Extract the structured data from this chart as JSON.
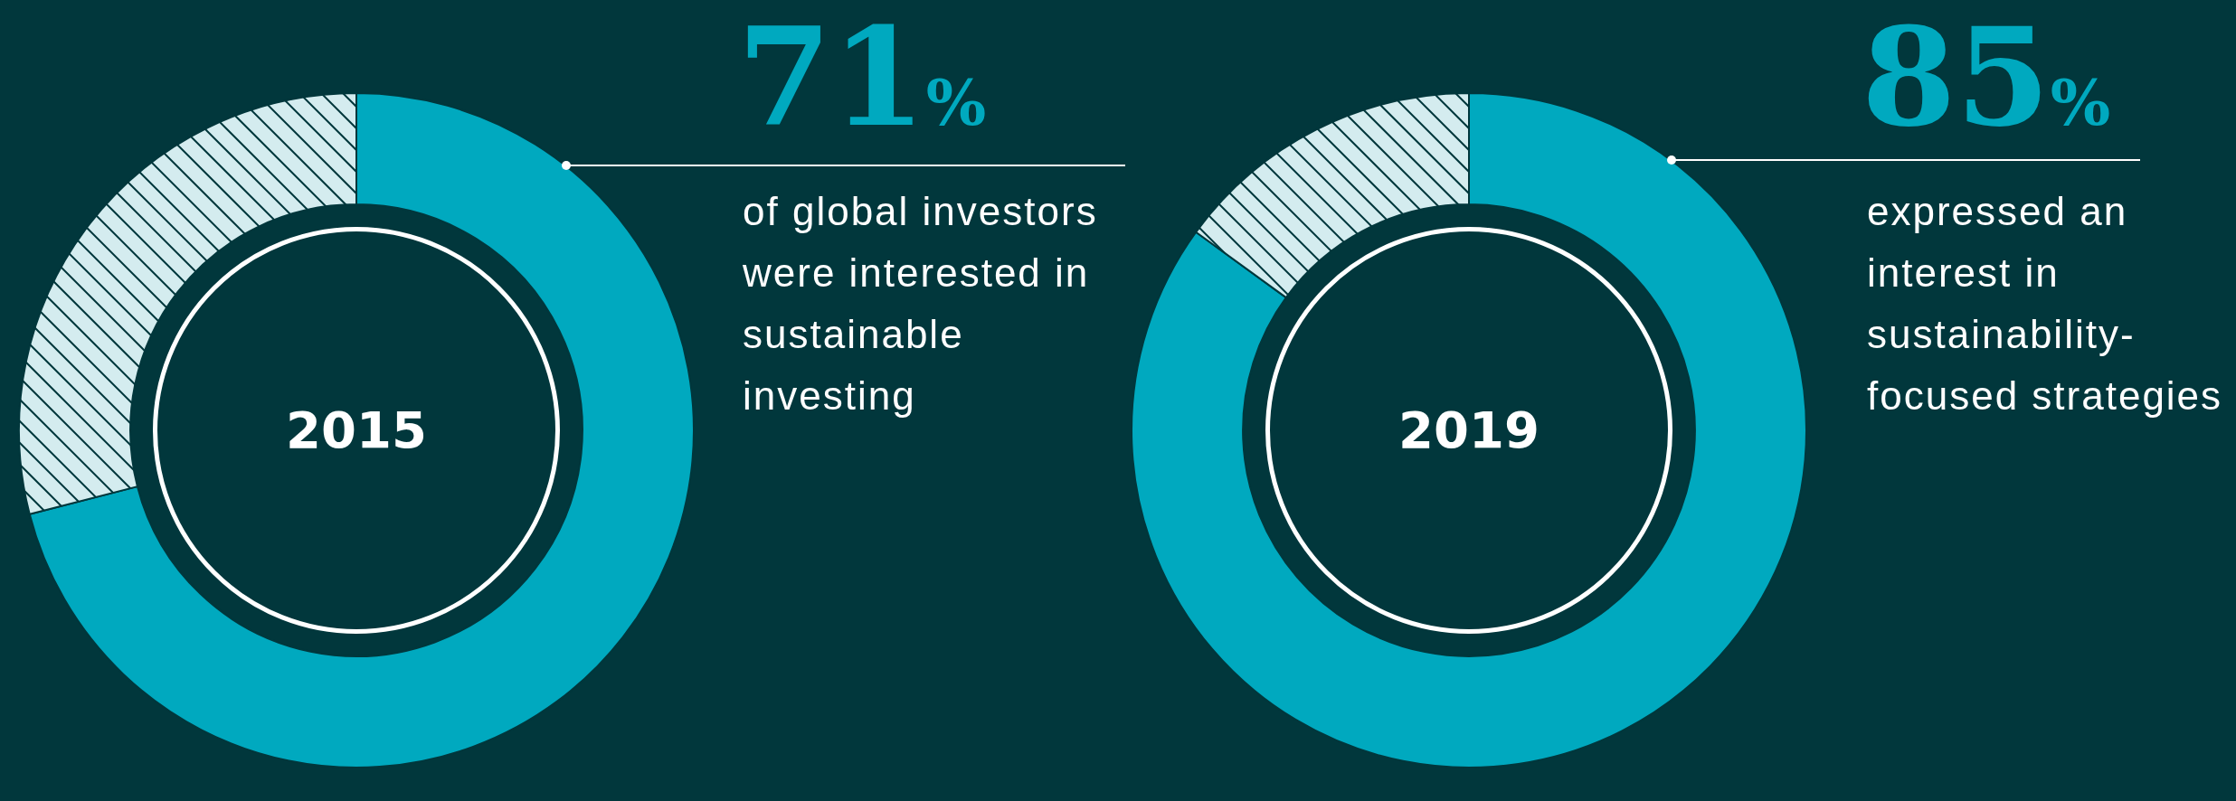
{
  "chart_data": [
    {
      "type": "donut",
      "title": "2015",
      "categories": [
        null,
        null
      ],
      "values": [
        71,
        29
      ],
      "colors": [
        "#00a9bf",
        "#d4ecef"
      ],
      "annotations": [
        "71%",
        "of global investors were interested in sustainable investing"
      ]
    },
    {
      "type": "donut",
      "title": "2019",
      "categories": [
        null,
        null
      ],
      "values": [
        85,
        15
      ],
      "colors": [
        "#00a9bf",
        "#d4ecef"
      ],
      "annotations": [
        "85%",
        "expressed an interest in sustainability-focused strategies"
      ]
    }
  ]
}
